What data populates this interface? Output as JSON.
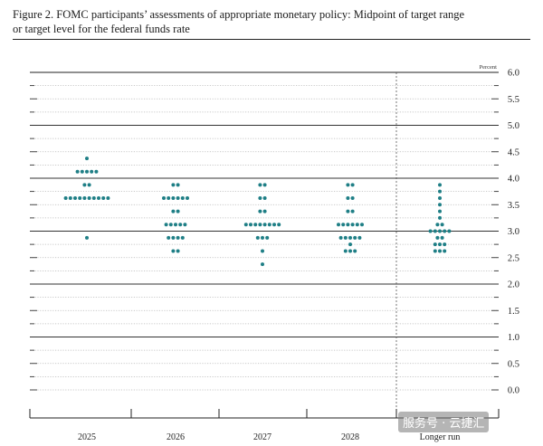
{
  "figure": {
    "title_line1": "Figure 2. FOMC participants’ assessments of appropriate monetary policy: Midpoint of target range",
    "title_line2": "or target level for the federal funds rate"
  },
  "chart_data": {
    "type": "scatter",
    "title": "Figure 2. FOMC participants’ assessments of appropriate monetary policy: Midpoint of target range or target level for the federal funds rate",
    "ylabel": "Percent",
    "ylim": [
      0.0,
      6.0
    ],
    "y_ticks": [
      "0.0",
      "0.5",
      "1.0",
      "1.5",
      "2.0",
      "2.5",
      "3.0",
      "3.5",
      "4.0",
      "4.5",
      "5.0",
      "5.5",
      "6.0"
    ],
    "categories": [
      "2025",
      "2026",
      "2027",
      "2028",
      "Longer run"
    ],
    "grid": true,
    "colors": {
      "dots": "#1f7f86",
      "axis": "#444444",
      "grid": "#b8b8b8"
    },
    "dot_plot": [
      {
        "category": "2025",
        "points": [
          {
            "y": 4.375,
            "count": 1
          },
          {
            "y": 4.125,
            "count": 5
          },
          {
            "y": 3.875,
            "count": 2
          },
          {
            "y": 3.625,
            "count": 10
          },
          {
            "y": 2.875,
            "count": 1
          }
        ]
      },
      {
        "category": "2026",
        "points": [
          {
            "y": 3.875,
            "count": 2
          },
          {
            "y": 3.625,
            "count": 6
          },
          {
            "y": 3.375,
            "count": 2
          },
          {
            "y": 3.125,
            "count": 5
          },
          {
            "y": 2.875,
            "count": 4
          },
          {
            "y": 2.625,
            "count": 2
          }
        ]
      },
      {
        "category": "2027",
        "points": [
          {
            "y": 3.875,
            "count": 2
          },
          {
            "y": 3.625,
            "count": 2
          },
          {
            "y": 3.375,
            "count": 2
          },
          {
            "y": 3.125,
            "count": 8
          },
          {
            "y": 2.875,
            "count": 3
          },
          {
            "y": 2.625,
            "count": 1
          },
          {
            "y": 2.375,
            "count": 1
          }
        ]
      },
      {
        "category": "2028",
        "points": [
          {
            "y": 3.875,
            "count": 2
          },
          {
            "y": 3.625,
            "count": 2
          },
          {
            "y": 3.375,
            "count": 2
          },
          {
            "y": 3.125,
            "count": 6
          },
          {
            "y": 2.875,
            "count": 5
          },
          {
            "y": 2.75,
            "count": 1
          },
          {
            "y": 2.625,
            "count": 3
          }
        ]
      },
      {
        "category": "Longer run",
        "points": [
          {
            "y": 3.875,
            "count": 1
          },
          {
            "y": 3.75,
            "count": 1
          },
          {
            "y": 3.625,
            "count": 1
          },
          {
            "y": 3.5,
            "count": 1
          },
          {
            "y": 3.375,
            "count": 1
          },
          {
            "y": 3.25,
            "count": 1
          },
          {
            "y": 3.125,
            "count": 2
          },
          {
            "y": 3.0,
            "count": 5
          },
          {
            "y": 2.875,
            "count": 2
          },
          {
            "y": 2.75,
            "count": 3
          },
          {
            "y": 2.625,
            "count": 3
          }
        ]
      }
    ]
  },
  "watermark": {
    "text": "服务号 · 云捷汇"
  }
}
